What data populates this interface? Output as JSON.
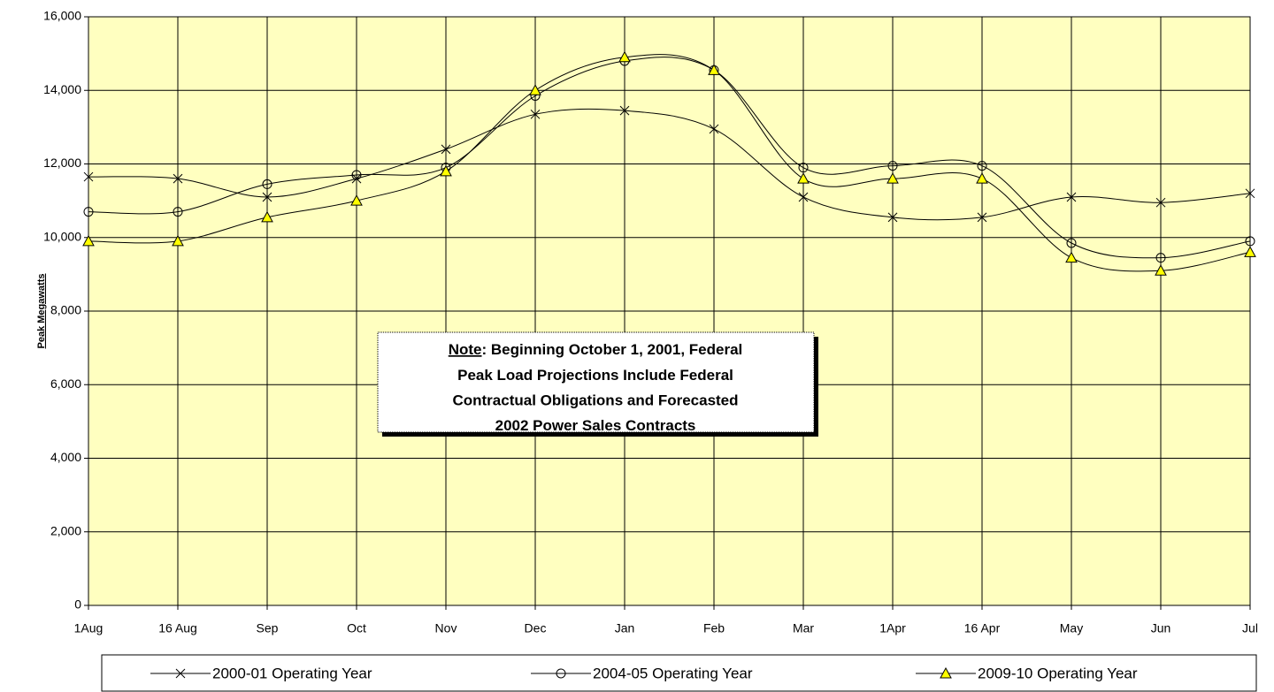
{
  "chart_data": {
    "type": "line",
    "y_label": "Peak Megawatts",
    "categories": [
      "1Aug",
      "16 Aug",
      "Sep",
      "Oct",
      "Nov",
      "Dec",
      "Jan",
      "Feb",
      "Mar",
      "1Apr",
      "16 Apr",
      "May",
      "Jun",
      "Jul"
    ],
    "series": [
      {
        "name": "2000-01 Operating Year",
        "color": "#000000",
        "marker": "x",
        "values": [
          11650,
          11600,
          11100,
          11600,
          12400,
          13350,
          13450,
          12950,
          11100,
          10550,
          10550,
          11100,
          10950,
          11200
        ]
      },
      {
        "name": "2004-05 Operating Year",
        "color": "#000000",
        "marker": "circle",
        "values": [
          10700,
          10700,
          11450,
          11700,
          11900,
          13850,
          14800,
          14550,
          11900,
          11950,
          11950,
          9850,
          9450,
          9900
        ]
      },
      {
        "name": "2009-10 Operating Year",
        "color": "#000000",
        "marker": "triangle",
        "marker_color": "#ffff00",
        "values": [
          9900,
          9900,
          10550,
          11000,
          11800,
          14000,
          14900,
          14550,
          11600,
          11600,
          11600,
          9450,
          9100,
          9600
        ]
      }
    ],
    "ylim": [
      0,
      16000
    ],
    "yticks": [
      0,
      {
        "value": 2000,
        "label": "2,000"
      },
      {
        "value": 4000,
        "label": "4,000"
      },
      {
        "value": 6000,
        "label": "6,000"
      },
      {
        "value": 8000,
        "label": "8,000"
      },
      {
        "value": 10000,
        "label": "10,000"
      },
      {
        "value": 12000,
        "label": "12,000"
      },
      {
        "value": 14000,
        "label": "14,000"
      },
      {
        "value": 16000,
        "label": "16,000"
      }
    ],
    "grid": true,
    "plot_background": "#ffffc0",
    "smooth": true,
    "legend": "bottom",
    "note": {
      "label": "Note",
      "lines": [
        ": Beginning October 1, 2001,  Federal",
        "Peak Load Projections Include Federal",
        "Contractual  Obligations and Forecasted",
        "2002 Power Sales Contracts"
      ]
    }
  }
}
